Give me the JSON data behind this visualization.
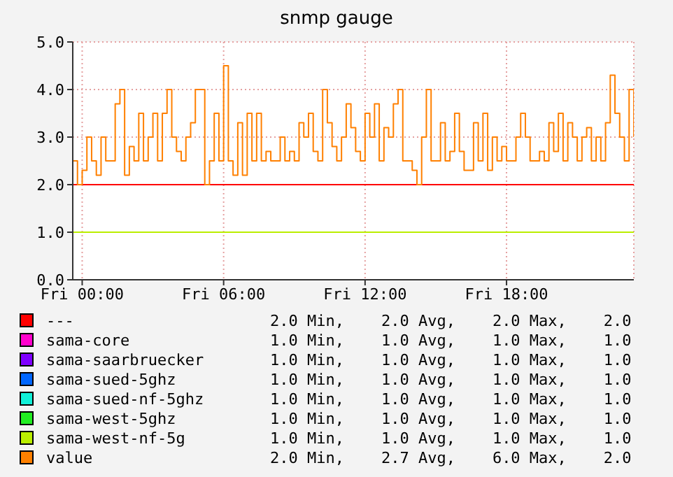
{
  "chart_data": {
    "type": "step",
    "title": "snmp gauge",
    "categories": [
      null,
      null,
      "Fri 00:00",
      null,
      null,
      null,
      null,
      null,
      null,
      null,
      null,
      null,
      null,
      null,
      null,
      null,
      null,
      null,
      null,
      null,
      null,
      null,
      null,
      null,
      null,
      null,
      null,
      null,
      null,
      null,
      null,
      null,
      "Fri 06:00",
      null,
      null,
      null,
      null,
      null,
      null,
      null,
      null,
      null,
      null,
      null,
      null,
      null,
      null,
      null,
      null,
      null,
      null,
      null,
      null,
      null,
      null,
      null,
      null,
      null,
      null,
      null,
      null,
      null,
      "Fri 12:00",
      null,
      null,
      null,
      null,
      null,
      null,
      null,
      null,
      null,
      null,
      null,
      null,
      null,
      null,
      null,
      null,
      null,
      null,
      null,
      null,
      null,
      null,
      null,
      null,
      null,
      null,
      null,
      null,
      null,
      "Fri 18:00",
      null,
      null,
      null,
      null,
      null,
      null,
      null,
      null,
      null,
      null,
      null,
      null,
      null,
      null,
      null,
      null,
      null,
      null,
      null,
      null,
      null,
      null,
      null,
      null,
      null,
      null,
      null
    ],
    "ylim": [
      0,
      5
    ],
    "yticks": [
      {
        "value": 0,
        "label": "0.0"
      },
      {
        "value": 1,
        "label": "1.0"
      },
      {
        "value": 2,
        "label": "2.0"
      },
      {
        "value": 3,
        "label": "3.0"
      },
      {
        "value": 4,
        "label": "4.0"
      },
      {
        "value": 5,
        "label": "5.0"
      }
    ],
    "grid": true,
    "legend": "bottom",
    "series": [
      {
        "name": "---",
        "color": "#ff0000",
        "values": [
          2,
          2,
          2,
          2,
          2,
          2,
          2,
          2,
          2,
          2,
          2,
          2,
          2,
          2,
          2,
          2,
          2,
          2,
          2,
          2,
          2,
          2,
          2,
          2,
          2,
          2,
          2,
          2,
          2,
          2,
          2,
          2,
          2,
          2,
          2,
          2,
          2,
          2,
          2,
          2,
          2,
          2,
          2,
          2,
          2,
          2,
          2,
          2,
          2,
          2,
          2,
          2,
          2,
          2,
          2,
          2,
          2,
          2,
          2,
          2,
          2,
          2,
          2,
          2,
          2,
          2,
          2,
          2,
          2,
          2,
          2,
          2,
          2,
          2,
          2,
          2,
          2,
          2,
          2,
          2,
          2,
          2,
          2,
          2,
          2,
          2,
          2,
          2,
          2,
          2,
          2,
          2,
          2,
          2,
          2,
          2,
          2,
          2,
          2,
          2,
          2,
          2,
          2,
          2,
          2,
          2,
          2,
          2,
          2,
          2,
          2,
          2,
          2,
          2,
          2,
          2,
          2,
          2,
          2,
          2
        ]
      },
      {
        "name": "sama-core",
        "color": "#ff00cc",
        "values": [
          null,
          null,
          null,
          null,
          null,
          null,
          null,
          null,
          null,
          null,
          null,
          null,
          null,
          null,
          null,
          null,
          null,
          null,
          null,
          null,
          null,
          null,
          null,
          null,
          null,
          null,
          null,
          null,
          null,
          null,
          null,
          null,
          null,
          null,
          null,
          null,
          null,
          null,
          null,
          null,
          null,
          null,
          null,
          null,
          null,
          null,
          null,
          null,
          null,
          null,
          null,
          null,
          null,
          null,
          null,
          null,
          null,
          null,
          null,
          null,
          null,
          null,
          null,
          null,
          null,
          null,
          null,
          null,
          null,
          null,
          null,
          null,
          null,
          null,
          null,
          null,
          null,
          null,
          null,
          null,
          null,
          null,
          null,
          null,
          null,
          null,
          null,
          null,
          null,
          null,
          null,
          null,
          null,
          null,
          null,
          null,
          null,
          null,
          null,
          null,
          null,
          null,
          null,
          null,
          null,
          null,
          null,
          null,
          null,
          null,
          null,
          null,
          null,
          null,
          null,
          null,
          null,
          null,
          null,
          null
        ]
      },
      {
        "name": "sama-saarbruecker",
        "color": "#7f00ff",
        "values": [
          null,
          null,
          null,
          null,
          null,
          null,
          null,
          null,
          null,
          null,
          null,
          null,
          null,
          null,
          null,
          null,
          null,
          null,
          null,
          null,
          null,
          null,
          null,
          null,
          null,
          null,
          null,
          null,
          null,
          null,
          null,
          null,
          null,
          null,
          null,
          null,
          null,
          null,
          null,
          null,
          null,
          null,
          null,
          null,
          null,
          null,
          null,
          null,
          null,
          null,
          null,
          null,
          null,
          null,
          null,
          null,
          null,
          null,
          null,
          null,
          null,
          null,
          null,
          null,
          null,
          null,
          null,
          null,
          null,
          null,
          null,
          null,
          null,
          null,
          null,
          null,
          null,
          null,
          null,
          null,
          null,
          null,
          null,
          null,
          null,
          null,
          null,
          null,
          null,
          null,
          null,
          null,
          null,
          null,
          null,
          null,
          null,
          null,
          null,
          null,
          null,
          null,
          null,
          null,
          null,
          null,
          null,
          null,
          null,
          null,
          null,
          null,
          null,
          null,
          null,
          null,
          null,
          null,
          null,
          null
        ]
      },
      {
        "name": "sama-sued-5ghz",
        "color": "#0066ff",
        "values": [
          null,
          null,
          null,
          null,
          null,
          null,
          null,
          null,
          null,
          null,
          null,
          null,
          null,
          null,
          null,
          null,
          null,
          null,
          null,
          null,
          null,
          null,
          null,
          null,
          null,
          null,
          null,
          null,
          null,
          null,
          null,
          null,
          null,
          null,
          null,
          null,
          null,
          null,
          null,
          null,
          null,
          null,
          null,
          null,
          null,
          null,
          null,
          null,
          null,
          null,
          null,
          null,
          null,
          null,
          null,
          null,
          null,
          null,
          null,
          null,
          null,
          null,
          null,
          null,
          null,
          null,
          null,
          null,
          null,
          null,
          null,
          null,
          null,
          null,
          null,
          null,
          null,
          null,
          null,
          null,
          null,
          null,
          null,
          null,
          null,
          null,
          null,
          null,
          null,
          null,
          null,
          null,
          null,
          null,
          null,
          null,
          null,
          null,
          null,
          null,
          null,
          null,
          null,
          null,
          null,
          null,
          null,
          null,
          null,
          null,
          null,
          null,
          null,
          null,
          null,
          null,
          null,
          null,
          null,
          null
        ]
      },
      {
        "name": "sama-sued-nf-5ghz",
        "color": "#11f0d8",
        "values": [
          null,
          null,
          null,
          null,
          null,
          null,
          null,
          null,
          null,
          null,
          null,
          null,
          null,
          null,
          null,
          null,
          null,
          null,
          null,
          null,
          null,
          null,
          null,
          null,
          null,
          null,
          null,
          null,
          null,
          null,
          null,
          null,
          null,
          null,
          null,
          null,
          null,
          null,
          null,
          null,
          null,
          null,
          null,
          null,
          null,
          null,
          null,
          null,
          null,
          null,
          null,
          null,
          null,
          null,
          null,
          null,
          null,
          null,
          null,
          null,
          null,
          null,
          null,
          null,
          null,
          null,
          null,
          null,
          null,
          null,
          null,
          null,
          null,
          null,
          null,
          null,
          null,
          null,
          null,
          null,
          null,
          null,
          null,
          null,
          null,
          null,
          null,
          null,
          null,
          null,
          null,
          null,
          null,
          null,
          null,
          null,
          null,
          null,
          null,
          null,
          null,
          null,
          null,
          null,
          null,
          null,
          null,
          null,
          null,
          null,
          null,
          null,
          null,
          null,
          null,
          null,
          null,
          null,
          null,
          null
        ]
      },
      {
        "name": "sama-west-5ghz",
        "color": "#22ee22",
        "values": [
          null,
          null,
          null,
          null,
          null,
          null,
          null,
          null,
          null,
          null,
          null,
          null,
          null,
          null,
          null,
          null,
          null,
          null,
          null,
          null,
          null,
          null,
          null,
          null,
          null,
          null,
          null,
          null,
          null,
          null,
          null,
          null,
          null,
          null,
          null,
          null,
          null,
          null,
          null,
          null,
          null,
          null,
          null,
          null,
          null,
          null,
          null,
          null,
          null,
          null,
          null,
          null,
          null,
          null,
          null,
          null,
          null,
          null,
          null,
          null,
          null,
          null,
          null,
          null,
          null,
          null,
          null,
          null,
          null,
          null,
          null,
          null,
          null,
          null,
          null,
          null,
          null,
          null,
          null,
          null,
          null,
          null,
          null,
          null,
          null,
          null,
          null,
          null,
          null,
          null,
          null,
          null,
          null,
          null,
          null,
          null,
          null,
          null,
          null,
          null,
          null,
          null,
          null,
          null,
          null,
          null,
          null,
          null,
          null,
          null,
          null,
          null,
          null,
          null,
          null,
          null,
          null,
          null,
          null,
          null
        ]
      },
      {
        "name": "sama-west-nf-5g",
        "color": "#bbee00",
        "values": [
          1,
          1,
          1,
          1,
          1,
          1,
          1,
          1,
          1,
          1,
          1,
          1,
          1,
          1,
          1,
          1,
          1,
          1,
          1,
          1,
          1,
          1,
          1,
          1,
          1,
          1,
          1,
          1,
          1,
          1,
          1,
          1,
          1,
          1,
          1,
          1,
          1,
          1,
          1,
          1,
          1,
          1,
          1,
          1,
          1,
          1,
          1,
          1,
          1,
          1,
          1,
          1,
          1,
          1,
          1,
          1,
          1,
          1,
          1,
          1,
          1,
          1,
          1,
          1,
          1,
          1,
          1,
          1,
          1,
          1,
          1,
          1,
          1,
          1,
          1,
          1,
          1,
          1,
          1,
          1,
          1,
          1,
          1,
          1,
          1,
          1,
          1,
          1,
          1,
          1,
          1,
          1,
          1,
          1,
          1,
          1,
          1,
          1,
          1,
          1,
          1,
          1,
          1,
          1,
          1,
          1,
          1,
          1,
          1,
          1,
          1,
          1,
          1,
          1,
          1,
          1,
          1,
          1,
          1,
          1
        ]
      },
      {
        "name": "value",
        "color": "#ff8000",
        "values": [
          2.5,
          2.0,
          2.3,
          3.0,
          2.5,
          2.2,
          3.0,
          2.5,
          2.5,
          3.7,
          4.0,
          2.2,
          2.8,
          2.5,
          3.5,
          2.5,
          3.0,
          3.5,
          2.5,
          3.5,
          4.0,
          3.0,
          2.7,
          2.5,
          3.0,
          3.3,
          4.0,
          4.0,
          2.0,
          2.5,
          3.5,
          2.5,
          4.5,
          2.5,
          2.2,
          3.3,
          2.2,
          3.5,
          2.5,
          3.5,
          2.5,
          2.7,
          2.5,
          2.5,
          3.0,
          2.5,
          2.7,
          2.5,
          3.3,
          3.0,
          3.5,
          2.7,
          2.5,
          4.0,
          3.3,
          2.8,
          2.5,
          3.0,
          3.7,
          3.2,
          2.7,
          2.5,
          3.5,
          3.0,
          3.7,
          2.5,
          3.2,
          3.0,
          3.7,
          4.0,
          2.5,
          2.5,
          2.3,
          2.0,
          3.0,
          4.0,
          2.5,
          2.5,
          3.3,
          2.5,
          2.7,
          3.5,
          2.7,
          2.3,
          2.3,
          3.3,
          2.5,
          3.5,
          2.3,
          3.0,
          2.5,
          2.8,
          2.5,
          2.5,
          3.0,
          3.5,
          3.0,
          2.5,
          2.5,
          2.7,
          2.5,
          3.3,
          2.7,
          3.5,
          2.5,
          3.3,
          3.0,
          2.5,
          3.0,
          3.2,
          2.5,
          3.0,
          2.5,
          3.3,
          4.3,
          3.5,
          3.0,
          2.5,
          4.0,
          3.0
        ]
      }
    ],
    "annotations": [
      "2.0 Min,    2.0 Avg,    2.0 Max,    2.0",
      "1.0 Min,    1.0 Avg,    1.0 Max,    1.0",
      "1.0 Min,    1.0 Avg,    1.0 Max,    1.0",
      "1.0 Min,    1.0 Avg,    1.0 Max,    1.0",
      "1.0 Min,    1.0 Avg,    1.0 Max,    1.0",
      "1.0 Min,    1.0 Avg,    1.0 Max,    1.0",
      "1.0 Min,    1.0 Avg,    1.0 Max,    1.0",
      "2.0 Min,    2.7 Avg,    6.0 Max,    2.0"
    ]
  }
}
